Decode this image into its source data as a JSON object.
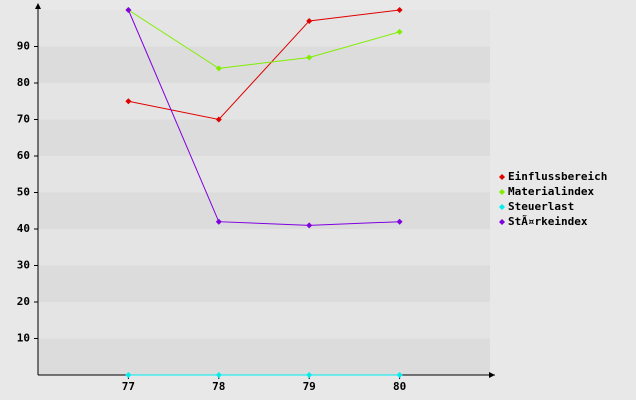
{
  "chart_data": {
    "type": "line",
    "categories": [
      "77",
      "78",
      "79",
      "80"
    ],
    "series": [
      {
        "name": "Einflussbereich",
        "color": "#e00000",
        "values": [
          75,
          70,
          97,
          100
        ]
      },
      {
        "name": "Materialindex",
        "color": "#80ee00",
        "values": [
          100,
          84,
          87,
          94
        ]
      },
      {
        "name": "Steuerlast",
        "color": "#00eeee",
        "values": [
          0,
          0,
          0,
          0
        ]
      },
      {
        "name": "StÃ¤rkeindex",
        "color": "#8000e0",
        "values": [
          100,
          42,
          41,
          42
        ]
      }
    ],
    "ylim": [
      0,
      100
    ],
    "yticks": [
      10,
      20,
      30,
      40,
      50,
      60,
      70,
      80,
      90
    ],
    "legend": "right"
  }
}
